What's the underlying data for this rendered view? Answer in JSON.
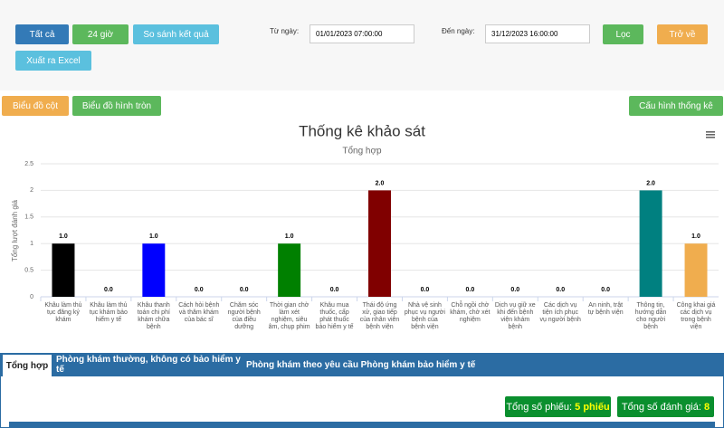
{
  "toolbar": {
    "buttons": [
      "Tất cả",
      "24 giờ",
      "So sánh kết quả",
      "Xuất ra Excel"
    ],
    "from_label": "Từ ngày:",
    "from_value": "01/01/2023 07:00:00",
    "to_label": "Đến ngày:",
    "to_value": "31/12/2023 16:00:00",
    "filter": "Lọc",
    "back": "Trở về"
  },
  "chart_buttons": {
    "bar": "Biểu đồ cột",
    "pie": "Biểu đồ hình tròn",
    "config": "Cấu hình thống kê"
  },
  "chart_data": {
    "type": "bar",
    "title": "Thống kê khảo sát",
    "subtitle": "Tổng hợp",
    "y_label": "Tổng lượt đánh giá",
    "categories": [
      "Khâu làm thủ tục đăng ký khám",
      "Khâu làm thủ tục khám bảo hiểm y tế",
      "Khâu thanh toán chi phí khám chữa bệnh",
      "Cách hỏi bệnh và thăm khám của bác sĩ",
      "Chăm sóc người bệnh của điều dưỡng",
      "Thời gian chờ làm xét nghiệm, siêu âm, chụp phim",
      "Khâu mua thuốc, cấp phát thuốc bảo hiểm y tế",
      "Thái độ ứng xử, giao tiếp của nhân viên bệnh viện",
      "Nhà vệ sinh phục vụ người bệnh của bệnh viện",
      "Chỗ ngồi chờ khám, chờ xét nghiệm",
      "Dịch vụ giữ xe khi đến bệnh viện khám bệnh",
      "Các dịch vụ tiện ích phục vụ người bệnh",
      "An ninh, trật tự bệnh viện",
      "Thông tin, hướng dẫn cho người bệnh",
      "Công khai giá các dịch vụ trong bệnh viện"
    ],
    "values": [
      1,
      0,
      1,
      0,
      0,
      1,
      0,
      2,
      0,
      0,
      0,
      0,
      0,
      2,
      1
    ],
    "value_labels": [
      "1.0",
      "0.0",
      "1.0",
      "0.0",
      "0.0",
      "1.0",
      "0.0",
      "2.0",
      "0.0",
      "0.0",
      "0.0",
      "0.0",
      "0.0",
      "2.0",
      "1.0"
    ],
    "colors": [
      "#000000",
      "#000000",
      "#0000ff",
      "#000000",
      "#000000",
      "#008000",
      "#000000",
      "#800000",
      "#000000",
      "#000000",
      "#000000",
      "#000000",
      "#000000",
      "#008080",
      "#f0ad4e"
    ],
    "ylim": [
      0,
      2.5
    ],
    "yticks": [
      0,
      0.5,
      1,
      1.5,
      2,
      2.5
    ],
    "grid": true
  },
  "tabs": [
    "Tổng hợp",
    "Phòng khám thường, không có bảo hiểm y tế",
    "Phòng khám theo yêu cầu",
    "Phòng khám bảo hiểm y tế"
  ],
  "summary": {
    "forms_label": "Tổng số phiếu:",
    "forms_value": "5 phiếu",
    "ratings_label": "Tổng số đánh giá:",
    "ratings_value": "8"
  }
}
